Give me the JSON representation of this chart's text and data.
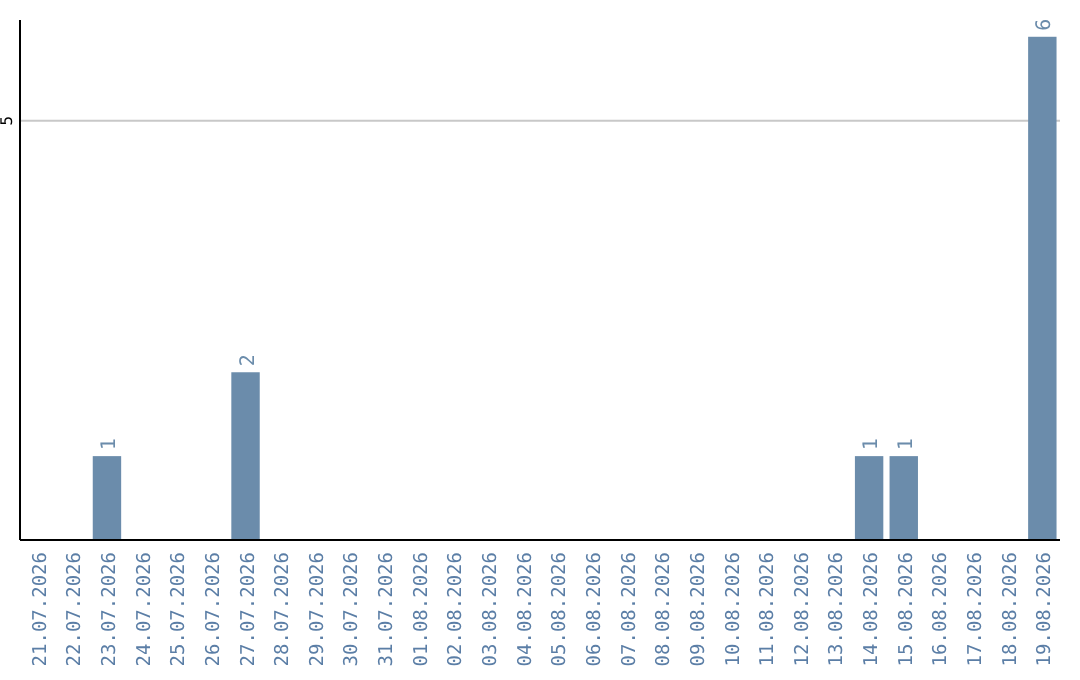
{
  "chart_data": {
    "type": "bar",
    "categories": [
      "21.07.2026",
      "22.07.2026",
      "23.07.2026",
      "24.07.2026",
      "25.07.2026",
      "26.07.2026",
      "27.07.2026",
      "28.07.2026",
      "29.07.2026",
      "30.07.2026",
      "31.07.2026",
      "01.08.2026",
      "02.08.2026",
      "03.08.2026",
      "04.08.2026",
      "05.08.2026",
      "06.08.2026",
      "07.08.2026",
      "08.08.2026",
      "09.08.2026",
      "10.08.2026",
      "11.08.2026",
      "12.08.2026",
      "13.08.2026",
      "14.08.2026",
      "15.08.2026",
      "16.08.2026",
      "17.08.2026",
      "18.08.2026",
      "19.08.2026"
    ],
    "values": [
      0,
      0,
      1,
      0,
      0,
      0,
      2,
      0,
      0,
      0,
      0,
      0,
      0,
      0,
      0,
      0,
      0,
      0,
      0,
      0,
      0,
      0,
      0,
      0,
      1,
      1,
      0,
      0,
      0,
      6
    ],
    "value_labels": [
      null,
      null,
      "1",
      null,
      null,
      null,
      "2",
      null,
      null,
      null,
      null,
      null,
      null,
      null,
      null,
      null,
      null,
      null,
      null,
      null,
      null,
      null,
      null,
      null,
      "1",
      "1",
      null,
      null,
      null,
      "6"
    ],
    "color": "#6b8cab",
    "ylim": [
      0,
      6.2
    ],
    "yticks": [
      5
    ],
    "grid": "y"
  }
}
